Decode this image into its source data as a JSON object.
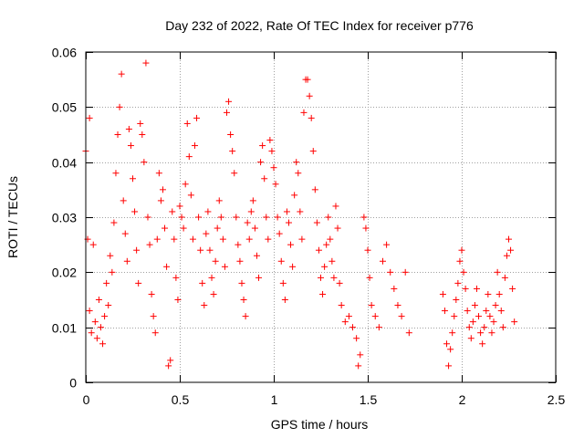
{
  "chart_data": {
    "type": "scatter",
    "title": "Day 232 of 2022, Rate Of TEC Index for receiver p776",
    "xlabel": "GPS time / hours",
    "ylabel": "ROTI / TECUs",
    "xlim": [
      0,
      2.5
    ],
    "ylim": [
      0,
      0.06
    ],
    "x_ticks": [
      0,
      0.5,
      1,
      1.5,
      2,
      2.5
    ],
    "x_tick_labels": [
      "0",
      "0.5",
      "1",
      "1.5",
      "2",
      "2.5"
    ],
    "y_ticks": [
      0,
      0.01,
      0.02,
      0.03,
      0.04,
      0.05,
      0.06
    ],
    "y_tick_labels": [
      "0",
      "0.01",
      "0.02",
      "0.03",
      "0.04",
      "0.05",
      "0.06"
    ],
    "grid": true,
    "marker": "+",
    "color": "#ff0000",
    "series": [
      {
        "name": "ROTI",
        "points": [
          [
            0.0,
            0.042
          ],
          [
            0.01,
            0.026
          ],
          [
            0.02,
            0.048
          ],
          [
            0.02,
            0.013
          ],
          [
            0.03,
            0.009
          ],
          [
            0.04,
            0.025
          ],
          [
            0.05,
            0.011
          ],
          [
            0.06,
            0.008
          ],
          [
            0.07,
            0.015
          ],
          [
            0.08,
            0.01
          ],
          [
            0.09,
            0.007
          ],
          [
            0.1,
            0.012
          ],
          [
            0.11,
            0.018
          ],
          [
            0.12,
            0.014
          ],
          [
            0.13,
            0.023
          ],
          [
            0.14,
            0.02
          ],
          [
            0.15,
            0.029
          ],
          [
            0.16,
            0.038
          ],
          [
            0.17,
            0.045
          ],
          [
            0.18,
            0.05
          ],
          [
            0.19,
            0.056
          ],
          [
            0.2,
            0.033
          ],
          [
            0.21,
            0.027
          ],
          [
            0.22,
            0.022
          ],
          [
            0.23,
            0.046
          ],
          [
            0.24,
            0.043
          ],
          [
            0.25,
            0.037
          ],
          [
            0.26,
            0.031
          ],
          [
            0.27,
            0.024
          ],
          [
            0.28,
            0.018
          ],
          [
            0.29,
            0.047
          ],
          [
            0.3,
            0.045
          ],
          [
            0.31,
            0.04
          ],
          [
            0.32,
            0.058
          ],
          [
            0.33,
            0.03
          ],
          [
            0.34,
            0.025
          ],
          [
            0.35,
            0.016
          ],
          [
            0.36,
            0.012
          ],
          [
            0.37,
            0.009
          ],
          [
            0.38,
            0.026
          ],
          [
            0.39,
            0.038
          ],
          [
            0.4,
            0.033
          ],
          [
            0.41,
            0.035
          ],
          [
            0.42,
            0.028
          ],
          [
            0.43,
            0.021
          ],
          [
            0.44,
            0.003
          ],
          [
            0.45,
            0.004
          ],
          [
            0.46,
            0.031
          ],
          [
            0.47,
            0.026
          ],
          [
            0.48,
            0.019
          ],
          [
            0.49,
            0.015
          ],
          [
            0.5,
            0.032
          ],
          [
            0.51,
            0.03
          ],
          [
            0.52,
            0.028
          ],
          [
            0.53,
            0.036
          ],
          [
            0.54,
            0.047
          ],
          [
            0.55,
            0.041
          ],
          [
            0.56,
            0.034
          ],
          [
            0.57,
            0.026
          ],
          [
            0.58,
            0.043
          ],
          [
            0.59,
            0.048
          ],
          [
            0.6,
            0.03
          ],
          [
            0.61,
            0.024
          ],
          [
            0.62,
            0.018
          ],
          [
            0.63,
            0.014
          ],
          [
            0.64,
            0.027
          ],
          [
            0.65,
            0.031
          ],
          [
            0.66,
            0.024
          ],
          [
            0.67,
            0.019
          ],
          [
            0.68,
            0.016
          ],
          [
            0.69,
            0.022
          ],
          [
            0.7,
            0.028
          ],
          [
            0.71,
            0.033
          ],
          [
            0.72,
            0.03
          ],
          [
            0.73,
            0.026
          ],
          [
            0.74,
            0.021
          ],
          [
            0.75,
            0.049
          ],
          [
            0.76,
            0.051
          ],
          [
            0.77,
            0.045
          ],
          [
            0.78,
            0.042
          ],
          [
            0.79,
            0.038
          ],
          [
            0.8,
            0.03
          ],
          [
            0.81,
            0.025
          ],
          [
            0.82,
            0.022
          ],
          [
            0.83,
            0.018
          ],
          [
            0.84,
            0.015
          ],
          [
            0.85,
            0.012
          ],
          [
            0.86,
            0.029
          ],
          [
            0.87,
            0.026
          ],
          [
            0.88,
            0.031
          ],
          [
            0.89,
            0.033
          ],
          [
            0.9,
            0.028
          ],
          [
            0.91,
            0.023
          ],
          [
            0.92,
            0.019
          ],
          [
            0.93,
            0.04
          ],
          [
            0.94,
            0.043
          ],
          [
            0.95,
            0.037
          ],
          [
            0.96,
            0.03
          ],
          [
            0.97,
            0.026
          ],
          [
            0.98,
            0.044
          ],
          [
            0.99,
            0.042
          ],
          [
            1.0,
            0.039
          ],
          [
            1.01,
            0.036
          ],
          [
            1.02,
            0.03
          ],
          [
            1.03,
            0.027
          ],
          [
            1.04,
            0.022
          ],
          [
            1.05,
            0.018
          ],
          [
            1.06,
            0.015
          ],
          [
            1.07,
            0.031
          ],
          [
            1.08,
            0.029
          ],
          [
            1.09,
            0.025
          ],
          [
            1.1,
            0.021
          ],
          [
            1.11,
            0.034
          ],
          [
            1.12,
            0.04
          ],
          [
            1.13,
            0.038
          ],
          [
            1.14,
            0.031
          ],
          [
            1.15,
            0.026
          ],
          [
            1.16,
            0.049
          ],
          [
            1.17,
            0.055
          ],
          [
            1.18,
            0.055
          ],
          [
            1.19,
            0.052
          ],
          [
            1.2,
            0.048
          ],
          [
            1.21,
            0.042
          ],
          [
            1.22,
            0.035
          ],
          [
            1.23,
            0.029
          ],
          [
            1.24,
            0.024
          ],
          [
            1.25,
            0.019
          ],
          [
            1.26,
            0.016
          ],
          [
            1.27,
            0.021
          ],
          [
            1.28,
            0.025
          ],
          [
            1.29,
            0.03
          ],
          [
            1.3,
            0.026
          ],
          [
            1.31,
            0.022
          ],
          [
            1.32,
            0.019
          ],
          [
            1.33,
            0.032
          ],
          [
            1.34,
            0.028
          ],
          [
            1.35,
            0.018
          ],
          [
            1.36,
            0.014
          ],
          [
            1.38,
            0.011
          ],
          [
            1.4,
            0.012
          ],
          [
            1.42,
            0.01
          ],
          [
            1.44,
            0.008
          ],
          [
            1.45,
            0.003
          ],
          [
            1.46,
            0.005
          ],
          [
            1.48,
            0.03
          ],
          [
            1.49,
            0.028
          ],
          [
            1.5,
            0.024
          ],
          [
            1.51,
            0.019
          ],
          [
            1.52,
            0.014
          ],
          [
            1.54,
            0.012
          ],
          [
            1.56,
            0.01
          ],
          [
            1.58,
            0.022
          ],
          [
            1.6,
            0.025
          ],
          [
            1.62,
            0.02
          ],
          [
            1.64,
            0.017
          ],
          [
            1.66,
            0.014
          ],
          [
            1.68,
            0.012
          ],
          [
            1.7,
            0.02
          ],
          [
            1.72,
            0.009
          ],
          [
            1.9,
            0.016
          ],
          [
            1.91,
            0.013
          ],
          [
            1.92,
            0.007
          ],
          [
            1.93,
            0.003
          ],
          [
            1.94,
            0.006
          ],
          [
            1.95,
            0.009
          ],
          [
            1.96,
            0.012
          ],
          [
            1.97,
            0.015
          ],
          [
            1.98,
            0.018
          ],
          [
            1.99,
            0.022
          ],
          [
            2.0,
            0.024
          ],
          [
            2.01,
            0.02
          ],
          [
            2.02,
            0.017
          ],
          [
            2.03,
            0.013
          ],
          [
            2.04,
            0.01
          ],
          [
            2.05,
            0.008
          ],
          [
            2.06,
            0.011
          ],
          [
            2.07,
            0.014
          ],
          [
            2.08,
            0.017
          ],
          [
            2.09,
            0.012
          ],
          [
            2.1,
            0.009
          ],
          [
            2.11,
            0.007
          ],
          [
            2.12,
            0.01
          ],
          [
            2.13,
            0.013
          ],
          [
            2.14,
            0.016
          ],
          [
            2.15,
            0.012
          ],
          [
            2.16,
            0.009
          ],
          [
            2.17,
            0.011
          ],
          [
            2.18,
            0.014
          ],
          [
            2.19,
            0.02
          ],
          [
            2.2,
            0.016
          ],
          [
            2.21,
            0.013
          ],
          [
            2.22,
            0.01
          ],
          [
            2.23,
            0.019
          ],
          [
            2.24,
            0.023
          ],
          [
            2.25,
            0.026
          ],
          [
            2.26,
            0.024
          ],
          [
            2.27,
            0.017
          ],
          [
            2.28,
            0.011
          ]
        ]
      }
    ]
  }
}
